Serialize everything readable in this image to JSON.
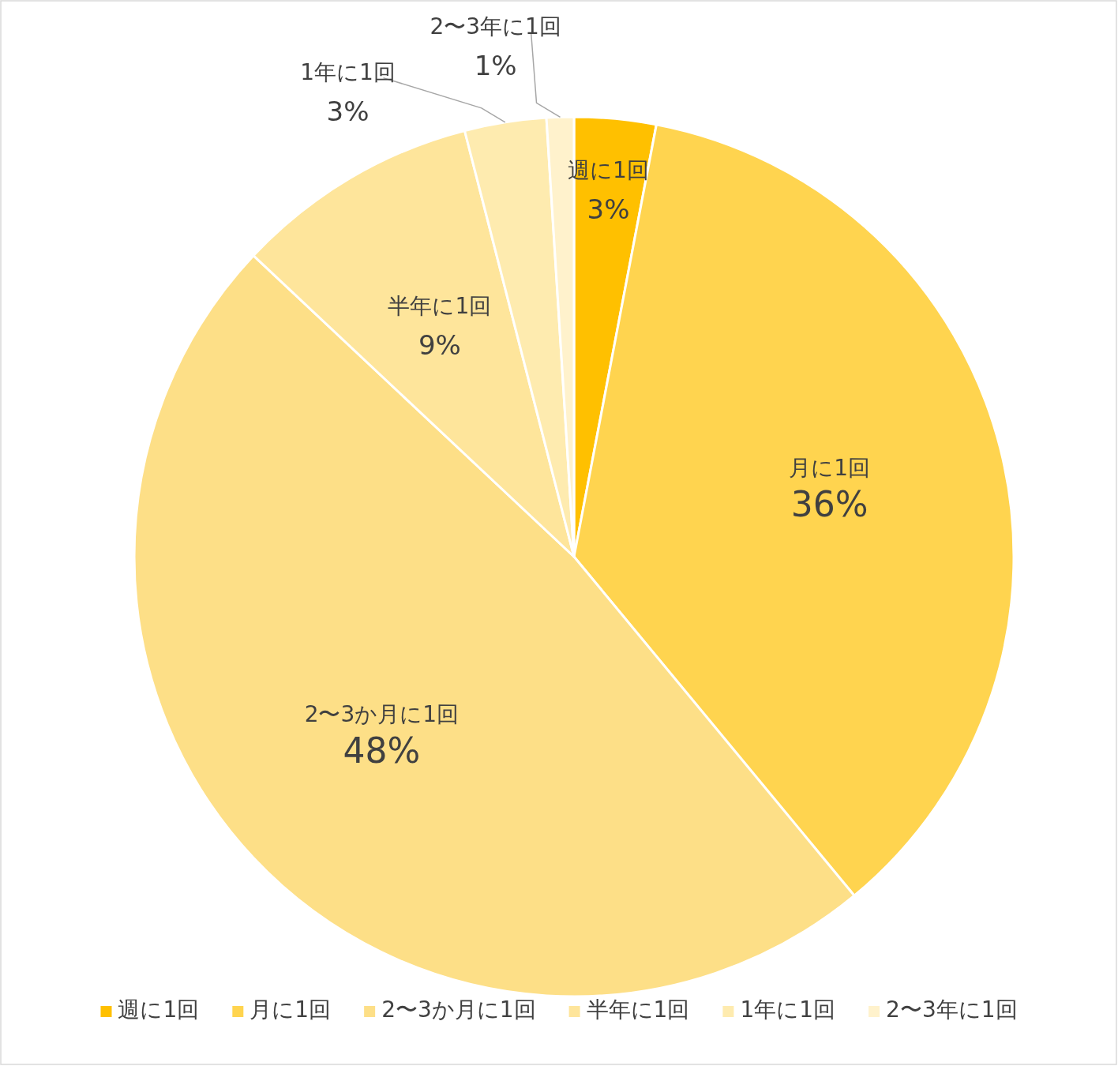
{
  "chart_data": {
    "type": "pie",
    "categories": [
      "週に1回",
      "月に1回",
      "2〜3か月に1回",
      "半年に1回",
      "1年に1回",
      "2〜3年に1回"
    ],
    "values": [
      3,
      36,
      48,
      9,
      3,
      1
    ],
    "colors": [
      "#ffc000",
      "#ffd44f",
      "#fddf87",
      "#fee59b",
      "#feebaf",
      "#fff2cc"
    ],
    "value_labels": [
      "3%",
      "36%",
      "48%",
      "9%",
      "3%",
      "1%"
    ],
    "legend": "bottom"
  }
}
